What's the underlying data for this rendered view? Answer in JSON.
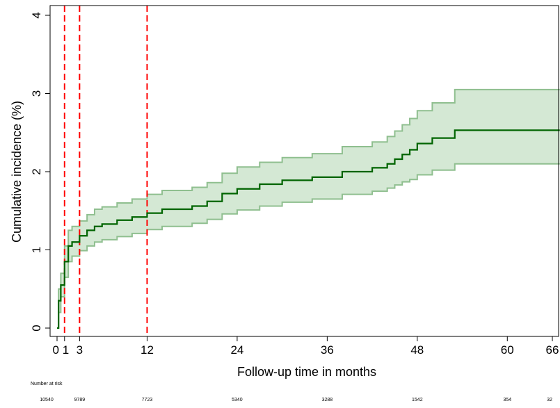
{
  "chart_data": {
    "type": "line",
    "title": "",
    "xlabel": "Follow-up time in months",
    "ylabel": "Cumulative incidence (%)",
    "xlim": [
      -1,
      67
    ],
    "ylim": [
      0,
      4
    ],
    "xticks": [
      {
        "value": 0,
        "label": "0"
      },
      {
        "value": 1,
        "label": "1"
      },
      {
        "value": 3,
        "label": "3"
      },
      {
        "value": 12,
        "label": "12"
      },
      {
        "value": 24,
        "label": "24"
      },
      {
        "value": 36,
        "label": "36"
      },
      {
        "value": 48,
        "label": "48"
      },
      {
        "value": 60,
        "label": "60"
      },
      {
        "value": 66,
        "label": "66"
      }
    ],
    "yticks": [
      {
        "value": 0,
        "label": "0"
      },
      {
        "value": 1,
        "label": "1"
      },
      {
        "value": 2,
        "label": "2"
      },
      {
        "value": 3,
        "label": "3"
      },
      {
        "value": 4,
        "label": "4"
      }
    ],
    "reference_lines_x": [
      1,
      3,
      12
    ],
    "grid": false,
    "series": [
      {
        "x": [
          0,
          0.2,
          0.5,
          1,
          1.5,
          2,
          3,
          4,
          5,
          6,
          8,
          10,
          12,
          14,
          18,
          20,
          22,
          24,
          27,
          30,
          34,
          38,
          42,
          44,
          45,
          46,
          47,
          48,
          50,
          53,
          67
        ],
        "estimate": [
          0.0,
          0.35,
          0.55,
          0.85,
          1.05,
          1.1,
          1.18,
          1.25,
          1.3,
          1.33,
          1.38,
          1.42,
          1.47,
          1.52,
          1.56,
          1.62,
          1.72,
          1.78,
          1.84,
          1.89,
          1.93,
          2.0,
          2.05,
          2.1,
          2.16,
          2.22,
          2.28,
          2.36,
          2.43,
          2.53,
          2.53
        ],
        "ci_lower": [
          0.0,
          0.2,
          0.4,
          0.65,
          0.85,
          0.92,
          0.99,
          1.05,
          1.1,
          1.13,
          1.17,
          1.21,
          1.26,
          1.3,
          1.34,
          1.39,
          1.46,
          1.51,
          1.56,
          1.61,
          1.65,
          1.71,
          1.75,
          1.79,
          1.83,
          1.87,
          1.9,
          1.96,
          2.02,
          2.1,
          2.1
        ],
        "ci_upper": [
          0.0,
          0.5,
          0.7,
          1.05,
          1.25,
          1.3,
          1.37,
          1.45,
          1.52,
          1.55,
          1.6,
          1.65,
          1.71,
          1.76,
          1.8,
          1.86,
          1.98,
          2.06,
          2.12,
          2.18,
          2.23,
          2.32,
          2.38,
          2.45,
          2.52,
          2.6,
          2.68,
          2.78,
          2.88,
          3.05,
          3.05
        ]
      }
    ]
  },
  "colors": {
    "line": "#006400",
    "band_fill": "#d4e8d4",
    "band_edge": "#8fbf8f",
    "ref_line": "#ff0000",
    "axis": "#000000"
  },
  "number_at_risk": {
    "title": "Number at risk",
    "entries": [
      {
        "time": 0,
        "value": "10540"
      },
      {
        "time": 3,
        "value": "9789"
      },
      {
        "time": 12,
        "value": "7723"
      },
      {
        "time": 24,
        "value": "5340"
      },
      {
        "time": 36,
        "value": "3288"
      },
      {
        "time": 48,
        "value": "1542"
      },
      {
        "time": 60,
        "value": "354"
      },
      {
        "time": 66,
        "value": "32"
      }
    ]
  }
}
